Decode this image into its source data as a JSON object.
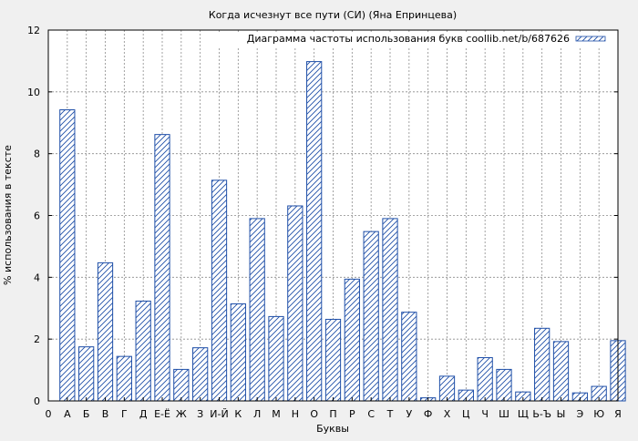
{
  "chart_data": {
    "type": "bar",
    "title": "Когда исчезнут все пути (СИ) (Яна Епринцева)",
    "xlabel": "Буквы",
    "ylabel": "% использования в тексте",
    "legend": {
      "label": "Диаграмма частоты использования букв coollib.net/b/687626",
      "position": "top-right"
    },
    "ylim": [
      0,
      12
    ],
    "yticks": [
      0,
      2,
      4,
      6,
      8,
      10,
      12
    ],
    "xtick_zero": "0",
    "grid": true,
    "colors": {
      "bar_stroke": "#1f4fa8",
      "hatch": "#1f4fa8",
      "background": "#f0f0f0",
      "grid": "#8c8c8c"
    },
    "categories": [
      "А",
      "Б",
      "В",
      "Г",
      "Д",
      "Е-Ё",
      "Ж",
      "З",
      "И-Й",
      "К",
      "Л",
      "М",
      "Н",
      "О",
      "П",
      "Р",
      "С",
      "Т",
      "У",
      "Ф",
      "Х",
      "Ц",
      "Ч",
      "Ш",
      "Щ",
      "Ь-Ъ",
      "Ы",
      "Э",
      "Ю",
      "Я"
    ],
    "values": [
      9.42,
      1.75,
      4.47,
      1.44,
      3.23,
      8.62,
      1.02,
      1.72,
      7.14,
      3.14,
      5.9,
      2.73,
      6.31,
      10.98,
      2.64,
      3.94,
      5.48,
      5.9,
      2.87,
      0.1,
      0.8,
      0.35,
      1.4,
      1.02,
      0.29,
      2.35,
      1.92,
      0.26,
      0.47,
      1.95
    ]
  }
}
